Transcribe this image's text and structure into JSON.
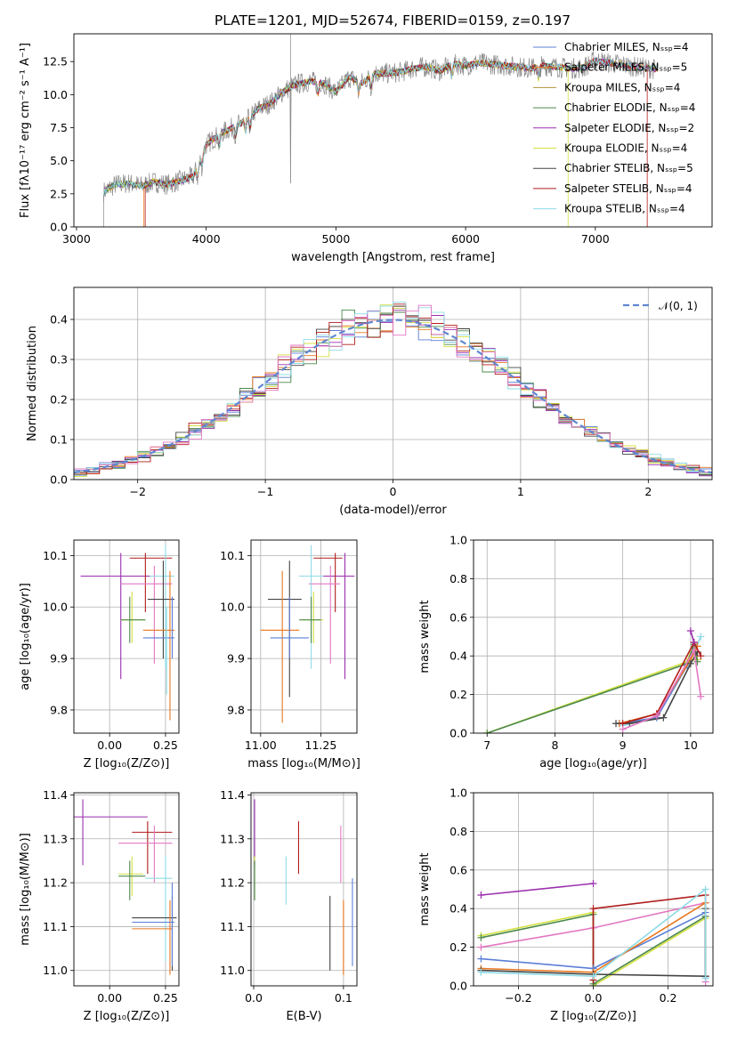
{
  "figure": {
    "title": "PLATE=1201, MJD=52674, FIBERID=0159, z=0.197"
  },
  "chart_data": [
    {
      "id": "spectrum",
      "type": "line",
      "xlabel": "wavelength [Angstrom, rest frame]",
      "ylabel": "Flux [fλ10⁻¹⁷ erg cm⁻² s⁻¹ A⁻¹]",
      "xlim": [
        2980,
        7900
      ],
      "ylim": [
        0,
        14.6
      ],
      "xticks": [
        3000,
        4000,
        5000,
        6000,
        7000
      ],
      "xtick_labels": [
        "3000",
        "4000",
        "5000",
        "6000",
        "7000"
      ],
      "yticks": [
        0.0,
        2.5,
        5.0,
        7.5,
        10.0,
        12.5
      ],
      "ytick_labels": [
        "0.0",
        "2.5",
        "5.0",
        "7.5",
        "10.0",
        "12.5"
      ],
      "continuum": {
        "x": [
          3200,
          3300,
          3400,
          3500,
          3600,
          3700,
          3800,
          3900,
          4000,
          4100,
          4200,
          4300,
          4400,
          4500,
          4600,
          4700,
          4800,
          4900,
          5000,
          5100,
          5200,
          5300,
          5400,
          5500,
          5600,
          5700,
          5800,
          5900,
          6000,
          6100,
          6200,
          6300,
          6400,
          6500,
          6600,
          6700,
          6800,
          6900,
          7000,
          7100,
          7200,
          7300,
          7400,
          7500
        ],
        "y": [
          2.6,
          3.2,
          3.3,
          3.1,
          3.4,
          3.2,
          3.5,
          3.8,
          6.2,
          7.0,
          7.5,
          8.0,
          8.9,
          9.4,
          10.3,
          10.8,
          11.0,
          10.9,
          10.2,
          11.3,
          10.9,
          11.6,
          11.6,
          11.7,
          12.0,
          12.1,
          11.8,
          12.3,
          12.2,
          12.4,
          12.3,
          12.2,
          12.1,
          12.0,
          12.2,
          12.1,
          12.0,
          12.0,
          12.6,
          12.4,
          12.3,
          12.1,
          12.0,
          11.9
        ]
      },
      "legend_position": "upper-right",
      "series": [
        {
          "name": "Chabrier MILES, N_SSP=4",
          "color": "#5b7fd6"
        },
        {
          "name": "Salpeter MILES, N_SSP=5",
          "color": "#e8771e"
        },
        {
          "name": "Kroupa MILES, N_SSP=4",
          "color": "#b8913c"
        },
        {
          "name": "Chabrier ELODIE, N_SSP=4",
          "color": "#4c8a4c"
        },
        {
          "name": "Salpeter ELODIE, N_SSP=2",
          "color": "#9b2fae"
        },
        {
          "name": "Kroupa ELODIE, N_SSP=4",
          "color": "#d4e040"
        },
        {
          "name": "Chabrier STELIB, N_SSP=5",
          "color": "#444444"
        },
        {
          "name": "Salpeter STELIB, N_SSP=4",
          "color": "#b21c1c"
        },
        {
          "name": "Kroupa STELIB, N_SSP=4",
          "color": "#8fdbe6"
        }
      ]
    },
    {
      "id": "residuals",
      "type": "line",
      "xlabel": "(data-model)/error",
      "ylabel": "Normed distribution",
      "xlim": [
        -2.5,
        2.5
      ],
      "ylim": [
        0,
        0.48
      ],
      "xticks": [
        -2,
        -1,
        0,
        1,
        2
      ],
      "xtick_labels": [
        "−2",
        "−1",
        "0",
        "1",
        "2"
      ],
      "yticks": [
        0.0,
        0.1,
        0.2,
        0.3,
        0.4
      ],
      "ytick_labels": [
        "0.0",
        "0.1",
        "0.2",
        "0.3",
        "0.4"
      ],
      "grid": true,
      "legend_position": "upper-right",
      "gaussian_label": "𝒩(0, 1)",
      "gaussian_color": "#5f87d0"
    },
    {
      "id": "age-vs-Z",
      "type": "scatter",
      "xlabel": "Z [log₁₀(Z/Z⊙)]",
      "ylabel": "age  [log₁₀(age/yr)]",
      "xlim": [
        -0.16,
        0.31
      ],
      "ylim": [
        9.755,
        10.13
      ],
      "xticks": [
        0.0,
        0.25
      ],
      "xtick_labels": [
        "0.00",
        "0.25"
      ],
      "yticks": [
        9.8,
        9.9,
        10.0,
        10.1
      ],
      "ytick_labels": [
        "9.8",
        "9.9",
        "10.0",
        "10.1"
      ],
      "grid": true,
      "points": [
        {
          "color": "#9b2fae",
          "x": 0.05,
          "xlo": -0.13,
          "xhi": 0.2,
          "y": 10.06,
          "ylo": 9.86,
          "yhi": 10.105
        },
        {
          "color": "#b21c1c",
          "x": 0.16,
          "xlo": 0.09,
          "xhi": 0.28,
          "y": 10.095,
          "ylo": 9.99,
          "yhi": 10.105
        },
        {
          "color": "#e377c2",
          "x": 0.2,
          "xlo": 0.05,
          "xhi": 0.28,
          "y": 10.045,
          "ylo": 9.89,
          "yhi": 10.08
        },
        {
          "color": "#8fdbe6",
          "x": 0.25,
          "xlo": 0.18,
          "xhi": 0.29,
          "y": 10.06,
          "ylo": 9.88,
          "yhi": 10.12
        },
        {
          "color": "#444444",
          "x": 0.24,
          "xlo": 0.17,
          "xhi": 0.29,
          "y": 10.015,
          "ylo": 9.9,
          "yhi": 10.09
        },
        {
          "color": "#d4e040",
          "x": 0.1,
          "xlo": 0.05,
          "xhi": 0.16,
          "y": 9.975,
          "ylo": 9.93,
          "yhi": 10.03
        },
        {
          "color": "#4c8a4c",
          "x": 0.09,
          "xlo": 0.05,
          "xhi": 0.16,
          "y": 9.975,
          "ylo": 9.93,
          "yhi": 10.02
        },
        {
          "color": "#e8771e",
          "x": 0.27,
          "xlo": 0.15,
          "xhi": 0.29,
          "y": 9.955,
          "ylo": 9.78,
          "yhi": 10.07
        },
        {
          "color": "#5b7fd6",
          "x": 0.28,
          "xlo": 0.15,
          "xhi": 0.29,
          "y": 9.94,
          "ylo": 9.9,
          "yhi": 10.02
        },
        {
          "color": "#8fdbe6",
          "x": 0.255,
          "xlo": 0.25,
          "xhi": 0.26,
          "y": 9.9,
          "ylo": 9.83,
          "yhi": 10.0
        }
      ]
    },
    {
      "id": "age-vs-mass",
      "type": "scatter",
      "xlabel": "mass [log₁₀(M/M⊙)]",
      "ylabel": "",
      "xlim": [
        10.96,
        11.4
      ],
      "ylim": [
        9.755,
        10.13
      ],
      "xticks": [
        11.0,
        11.25
      ],
      "xtick_labels": [
        "11.00",
        "11.25"
      ],
      "yticks": [
        9.8,
        9.9,
        10.0,
        10.1
      ],
      "ytick_labels": [
        "9.8",
        "9.9",
        "10.0",
        "10.1"
      ],
      "grid": true,
      "points": [
        {
          "color": "#9b2fae",
          "x": 11.35,
          "xlo": 11.24,
          "xhi": 11.39,
          "y": 10.06,
          "ylo": 9.86,
          "yhi": 10.105
        },
        {
          "color": "#b21c1c",
          "x": 11.31,
          "xlo": 11.22,
          "xhi": 11.34,
          "y": 10.095,
          "ylo": 9.99,
          "yhi": 10.105
        },
        {
          "color": "#e377c2",
          "x": 11.29,
          "xlo": 11.2,
          "xhi": 11.33,
          "y": 10.045,
          "ylo": 9.89,
          "yhi": 10.08
        },
        {
          "color": "#8fdbe6",
          "x": 11.21,
          "xlo": 11.16,
          "xhi": 11.26,
          "y": 10.06,
          "ylo": 9.88,
          "yhi": 10.12
        },
        {
          "color": "#444444",
          "x": 11.12,
          "xlo": 11.03,
          "xhi": 11.17,
          "y": 10.015,
          "ylo": 9.825,
          "yhi": 10.09
        },
        {
          "color": "#d4e040",
          "x": 11.22,
          "xlo": 11.17,
          "xhi": 11.26,
          "y": 9.975,
          "ylo": 9.93,
          "yhi": 10.03
        },
        {
          "color": "#4c8a4c",
          "x": 11.21,
          "xlo": 11.16,
          "xhi": 11.25,
          "y": 9.975,
          "ylo": 9.93,
          "yhi": 10.02
        },
        {
          "color": "#e8771e",
          "x": 11.09,
          "xlo": 11.0,
          "xhi": 11.16,
          "y": 9.955,
          "ylo": 9.775,
          "yhi": 10.07
        },
        {
          "color": "#5b7fd6",
          "x": 11.12,
          "xlo": 11.04,
          "xhi": 11.2,
          "y": 9.94,
          "ylo": 9.9,
          "yhi": 10.02
        }
      ]
    },
    {
      "id": "mass-weight-vs-age",
      "type": "line",
      "xlabel": "age  [log₁₀(age/yr)]",
      "ylabel": "mass weight",
      "xlim": [
        6.8,
        10.33
      ],
      "ylim": [
        0,
        1.0
      ],
      "xticks": [
        7,
        8,
        9,
        10
      ],
      "xtick_labels": [
        "7",
        "8",
        "9",
        "10"
      ],
      "yticks": [
        0.0,
        0.2,
        0.4,
        0.6,
        0.8,
        1.0
      ],
      "ytick_labels": [
        "0.0",
        "0.2",
        "0.4",
        "0.6",
        "0.8",
        "1.0"
      ],
      "grid": true,
      "series": [
        {
          "color": "#d4e040",
          "x": [
            7.0,
            9.95,
            10.05,
            10.1
          ],
          "y": [
            0.0,
            0.37,
            0.47,
            0.38
          ]
        },
        {
          "color": "#4c8a4c",
          "x": [
            7.0,
            9.95,
            10.05,
            10.1
          ],
          "y": [
            0.0,
            0.36,
            0.46,
            0.37
          ]
        },
        {
          "color": "#8fdbe6",
          "x": [
            9.0,
            9.5,
            10.0,
            10.15
          ],
          "y": [
            0.04,
            0.08,
            0.38,
            0.5
          ]
        },
        {
          "color": "#5b7fd6",
          "x": [
            8.95,
            9.5,
            9.95,
            10.1
          ],
          "y": [
            0.05,
            0.08,
            0.35,
            0.45
          ]
        },
        {
          "color": "#e8771e",
          "x": [
            8.95,
            9.5,
            10.0,
            10.1
          ],
          "y": [
            0.05,
            0.1,
            0.38,
            0.45
          ]
        },
        {
          "color": "#444444",
          "x": [
            8.9,
            9.1,
            9.6,
            10.0,
            10.1
          ],
          "y": [
            0.05,
            0.05,
            0.08,
            0.36,
            0.42
          ]
        },
        {
          "color": "#b21c1c",
          "x": [
            9.0,
            9.5,
            10.05,
            10.15
          ],
          "y": [
            0.05,
            0.1,
            0.47,
            0.4
          ]
        },
        {
          "color": "#e377c2",
          "x": [
            9.0,
            9.5,
            10.05,
            10.15
          ],
          "y": [
            0.02,
            0.09,
            0.43,
            0.19
          ]
        },
        {
          "color": "#9b2fae",
          "x": [
            10.0,
            10.05
          ],
          "y": [
            0.53,
            0.47
          ]
        }
      ]
    },
    {
      "id": "mass-vs-Z",
      "type": "scatter",
      "xlabel": "Z [log₁₀(Z/Z⊙)]",
      "ylabel": "mass [log₁₀(M/M⊙)]",
      "xlim": [
        -0.16,
        0.31
      ],
      "ylim": [
        10.965,
        11.405
      ],
      "xticks": [
        0.0,
        0.25
      ],
      "xtick_labels": [
        "0.00",
        "0.25"
      ],
      "yticks": [
        11.0,
        11.1,
        11.2,
        11.3,
        11.4
      ],
      "ytick_labels": [
        "11.0",
        "11.1",
        "11.2",
        "11.3",
        "11.4"
      ],
      "grid": true,
      "points": [
        {
          "color": "#9b2fae",
          "x": -0.12,
          "xlo": -0.16,
          "xhi": 0.17,
          "y": 11.35,
          "ylo": 11.24,
          "yhi": 11.39
        },
        {
          "color": "#b21c1c",
          "x": 0.17,
          "xlo": 0.1,
          "xhi": 0.28,
          "y": 11.315,
          "ylo": 11.22,
          "yhi": 11.34
        },
        {
          "color": "#e377c2",
          "x": 0.2,
          "xlo": 0.04,
          "xhi": 0.28,
          "y": 11.29,
          "ylo": 11.2,
          "yhi": 11.33
        },
        {
          "color": "#8fdbe6",
          "x": 0.25,
          "xlo": 0.16,
          "xhi": 0.28,
          "y": 11.21,
          "ylo": 11.02,
          "yhi": 11.26
        },
        {
          "color": "#d4e040",
          "x": 0.1,
          "xlo": 0.04,
          "xhi": 0.15,
          "y": 11.22,
          "ylo": 11.17,
          "yhi": 11.26
        },
        {
          "color": "#4c8a4c",
          "x": 0.09,
          "xlo": 0.04,
          "xhi": 0.16,
          "y": 11.215,
          "ylo": 11.16,
          "yhi": 11.25
        },
        {
          "color": "#444444",
          "x": 0.28,
          "xlo": 0.1,
          "xhi": 0.3,
          "y": 11.12,
          "ylo": 11.0,
          "yhi": 11.17
        },
        {
          "color": "#e8771e",
          "x": 0.27,
          "xlo": 0.1,
          "xhi": 0.28,
          "y": 11.095,
          "ylo": 10.99,
          "yhi": 11.16
        },
        {
          "color": "#5b7fd6",
          "x": 0.28,
          "xlo": 0.1,
          "xhi": 0.29,
          "y": 11.11,
          "ylo": 11.01,
          "yhi": 11.2
        }
      ]
    },
    {
      "id": "mass-vs-EBV",
      "type": "scatter",
      "xlabel": "E(B-V)",
      "ylabel": "",
      "xlim": [
        -0.003,
        0.115
      ],
      "ylim": [
        10.965,
        11.405
      ],
      "xticks": [
        0.0,
        0.1
      ],
      "xtick_labels": [
        "0.0",
        "0.1"
      ],
      "yticks": [
        11.0,
        11.1,
        11.2,
        11.3,
        11.4
      ],
      "ytick_labels": [
        "11.0",
        "11.1",
        "11.2",
        "11.3",
        "11.4"
      ],
      "grid": true,
      "points": [
        {
          "color": "#9b2fae",
          "x": 0.001,
          "ylo": 11.24,
          "yhi": 11.39
        },
        {
          "color": "#d4e040",
          "x": 0.001,
          "ylo": 11.16,
          "yhi": 11.26
        },
        {
          "color": "#4c8a4c",
          "x": 0.001,
          "ylo": 11.16,
          "yhi": 11.25
        },
        {
          "color": "#8fdbe6",
          "x": 0.036,
          "ylo": 11.15,
          "yhi": 11.26
        },
        {
          "color": "#b21c1c",
          "x": 0.05,
          "ylo": 11.22,
          "yhi": 11.34
        },
        {
          "color": "#444444",
          "x": 0.085,
          "ylo": 11.0,
          "yhi": 11.17
        },
        {
          "color": "#e377c2",
          "x": 0.097,
          "ylo": 11.2,
          "yhi": 11.33
        },
        {
          "color": "#e8771e",
          "x": 0.1,
          "ylo": 10.99,
          "yhi": 11.16
        },
        {
          "color": "#5b7fd6",
          "x": 0.11,
          "ylo": 11.01,
          "yhi": 11.21
        }
      ]
    },
    {
      "id": "mass-weight-vs-Z",
      "type": "line",
      "xlabel": "Z [log₁₀(Z/Z⊙)]",
      "ylabel": "mass weight",
      "xlim": [
        -0.32,
        0.32
      ],
      "ylim": [
        0,
        1.0
      ],
      "xticks": [
        -0.2,
        0.0,
        0.2
      ],
      "xtick_labels": [
        "−0.2",
        "0.0",
        "0.2"
      ],
      "yticks": [
        0.0,
        0.2,
        0.4,
        0.6,
        0.8,
        1.0
      ],
      "ytick_labels": [
        "0.0",
        "0.2",
        "0.4",
        "0.6",
        "0.8",
        "1.0"
      ],
      "grid": true,
      "series": [
        {
          "color": "#9b2fae",
          "x": [
            -0.3,
            0.0
          ],
          "y": [
            0.47,
            0.53
          ]
        },
        {
          "color": "#d4e040",
          "x": [
            -0.3,
            0.0,
            0.0,
            0.3
          ],
          "y": [
            0.26,
            0.38,
            0.0,
            0.35
          ]
        },
        {
          "color": "#4c8a4c",
          "x": [
            -0.3,
            0.0,
            0.0,
            0.3
          ],
          "y": [
            0.25,
            0.37,
            0.01,
            0.36
          ]
        },
        {
          "color": "#e377c2",
          "x": [
            -0.3,
            0.0,
            0.3,
            0.3
          ],
          "y": [
            0.2,
            0.3,
            0.43,
            0.02
          ]
        },
        {
          "color": "#b21c1c",
          "x": [
            0.0,
            0.0,
            0.3,
            0.3
          ],
          "y": [
            0.03,
            0.4,
            0.47,
            0.05
          ]
        },
        {
          "color": "#5b7fd6",
          "x": [
            -0.3,
            0.0,
            0.3,
            0.3
          ],
          "y": [
            0.14,
            0.09,
            0.38,
            0.04
          ]
        },
        {
          "color": "#e8771e",
          "x": [
            -0.3,
            0.0,
            0.3,
            0.3
          ],
          "y": [
            0.09,
            0.07,
            0.43,
            0.05
          ]
        },
        {
          "color": "#444444",
          "x": [
            -0.3,
            0.0,
            0.3,
            0.3
          ],
          "y": [
            0.08,
            0.06,
            0.05,
            0.4
          ]
        },
        {
          "color": "#8fdbe6",
          "x": [
            -0.3,
            0.0,
            0.3,
            0.3
          ],
          "y": [
            0.07,
            0.05,
            0.5,
            0.04
          ]
        }
      ]
    }
  ]
}
